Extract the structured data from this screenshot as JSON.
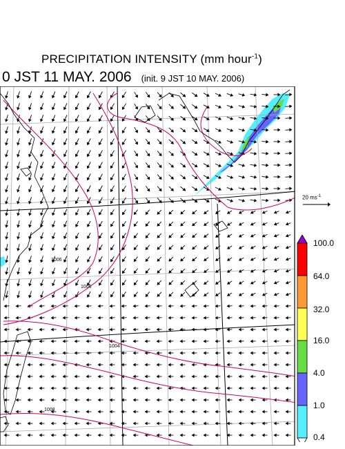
{
  "header": {
    "title_main": "PRECIPITATION INTENSITY (mm hour",
    "title_exp": "-1",
    "title_close": ")",
    "valid_time": "0 JST 11 MAY. 2006",
    "init_time": "(init. 9 JST 10 MAY. 2006)"
  },
  "wind_reference": {
    "label": "20 ms",
    "exp": "-1"
  },
  "legend": {
    "labels": [
      "100.0",
      "64.0",
      "32.0",
      "16.0",
      "4.0",
      "1.0",
      "0.4"
    ],
    "colors": [
      "#9900cc",
      "#ff0000",
      "#ff9933",
      "#ffff55",
      "#66dd44",
      "#6666ff",
      "#55eeff",
      "#ffffff"
    ]
  },
  "map": {
    "coast_color": "#000000",
    "grid_color": "#aaaaaa",
    "isobar_color": "#cc0066",
    "isobar_labels": [
      "1006",
      "1006",
      "1004",
      "1008"
    ]
  }
}
